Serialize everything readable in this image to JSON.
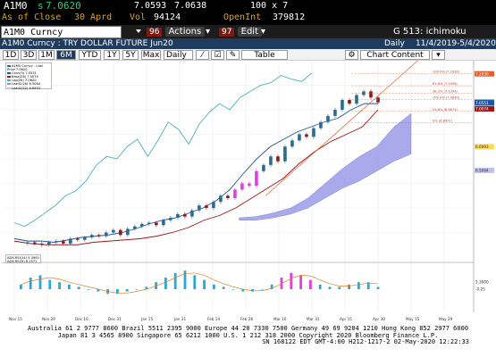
{
  "quote": {
    "ticker": "A1M0",
    "last_prefix": "s",
    "last": "7.0620",
    "bid": "7.0593",
    "ask": "7.0638",
    "size": "100 x 7",
    "close_label": "As of Close",
    "close_date": "30 Aprd",
    "vol_label": "Vol",
    "vol": "94124",
    "openint_label": "OpenInt",
    "openint": "379812"
  },
  "toolbar": {
    "security": "A1M0 Curncy",
    "actions_num": "96",
    "actions_label": "Actions",
    "edit_num": "97",
    "edit_label": "Edit",
    "right_label": "G 513: ichimoku"
  },
  "title": {
    "name": "A1M0 Curncy : TRY DOLLAR FUTURE Jun20",
    "freq": "Daily",
    "range": "11/4/2019-5/4/2020"
  },
  "periods": [
    "1D",
    "3D",
    "1M",
    "6M",
    "YTD",
    "1Y",
    "5Y",
    "Max"
  ],
  "selected_period": "6M",
  "freq_select": "Daily",
  "table_label": "Table",
  "chart_content_label": "Chart Content",
  "bottom": {
    "line1": "Australia 61 2 9777 8600 Brazil 5511 2395 9000 Europe 44 20 7330 7500 Germany 49 69 9204 1210 Hong Kong 852 2977 6000",
    "line2": "Japan 81 3 4565 8900 Singapore 65 6212 1000 U.S. 1 212 318 2000 Copyright 2020 Bloomberg Finance L.P.",
    "line3": "SN 168122 EDT GMT-4:00 H212-1217-2 02-May-2020 12:22:33"
  },
  "colors": {
    "accent": "#1f3b5f",
    "quote": "#f5a623",
    "last": "#26d07c",
    "bull": "#2b6b8f",
    "bear": "#8b1a1a",
    "magenta": "#e040e0",
    "cloud": "#8c8ce6",
    "tenkan": "#1a55a8",
    "kijun": "#a31515",
    "chikou": "#4ab3b3",
    "fib": "#e06030"
  },
  "icons": [
    "dropdown-icon",
    "checkbox-icon",
    "settings-icon"
  ],
  "chart_data": {
    "type": "candlestick",
    "title": "A1M0 Curncy - Last Price",
    "xlabel": "",
    "ylabel": "",
    "x": [
      "Nov 15",
      "Nov 29",
      "Dec 16",
      "Dec 31",
      "Jan 15",
      "Jan 31",
      "Feb 14",
      "Feb 28",
      "Mar 16",
      "Mar 31",
      "Apr 15",
      "Apr 30",
      "May 15",
      "May 29"
    ],
    "ylim": [
      5.8,
      7.4
    ],
    "ichimoku": {
      "tenkan": "Conversion(9)",
      "kijun": "Base(26)",
      "chikou": "Lag(26)",
      "senkou_a": "Lead1(26)",
      "senkou_b": "Lead2(52)"
    },
    "last_price": 7.062,
    "legend": {
      "main": [
        "A1M0 Curncy - Last Price 7.0620",
        "Conv(9) 7.0551",
        "Base(26) 7.0074",
        "Lag(26) 7.0620",
        "Lead1(26) 6.5064",
        "Lead2(52) 6.6993"
      ],
      "sub": [
        "ADX-RSI(14) 5.3900",
        "ADX-RSI(9) 6.2571"
      ]
    },
    "fib_levels": [
      {
        "label": "100.0% (7.2930)",
        "value": 7.293
      },
      {
        "label": "61.8% (7.1956)",
        "value": 7.1956
      },
      {
        "label": "38.2% (7.1354)",
        "value": 7.1354
      },
      {
        "label": "100.0% (7.0830)",
        "value": 7.083
      },
      {
        "label": "23.6% (6.9871)",
        "value": 6.9871
      },
      {
        "label": "0% (6.8951)",
        "value": 6.8951
      }
    ],
    "price_labels": [
      "7.2930",
      "7.0620",
      "7.0551",
      "7.0074",
      "6.6993",
      "6.5064"
    ],
    "indicator_labels": [
      "-0.25",
      "5.3900"
    ]
  }
}
